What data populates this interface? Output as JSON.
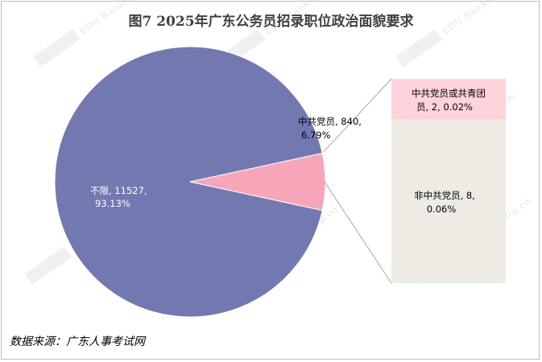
{
  "chart_data": {
    "type": "pie",
    "title": "图7  2025年广东公务员招录职位政治面貌要求",
    "main_slices": [
      {
        "label": "不限",
        "value": 11527,
        "percent": "93.13%",
        "color": "#7378b0"
      },
      {
        "label": "中共党员",
        "value": 840,
        "percent": "6.79%",
        "color": "#f6a6b8"
      }
    ],
    "breakout": {
      "parent": "中共党员",
      "slices": [
        {
          "label": "中共党员或共青团员",
          "value": 2,
          "percent": "0.02%",
          "color": "#ffd3dc"
        },
        {
          "label": "非中共党员",
          "value": 8,
          "percent": "0.06%",
          "color": "#eeebe5"
        }
      ]
    }
  },
  "labels": {
    "buxian_line1": "不限, 11527,",
    "buxian_line2": "93.13%",
    "dangyuan_line1": "中共党员, 840,",
    "dangyuan_line2": "6.79%",
    "tuan_line1": "中共党员或共青团",
    "tuan_line2": "员, 2, 0.02%",
    "fei_line1": "非中共党员, 8,",
    "fei_line2": "0.06%"
  },
  "watermark": "EDU Ranking.cn",
  "source": "数据来源：广东人事考试网"
}
